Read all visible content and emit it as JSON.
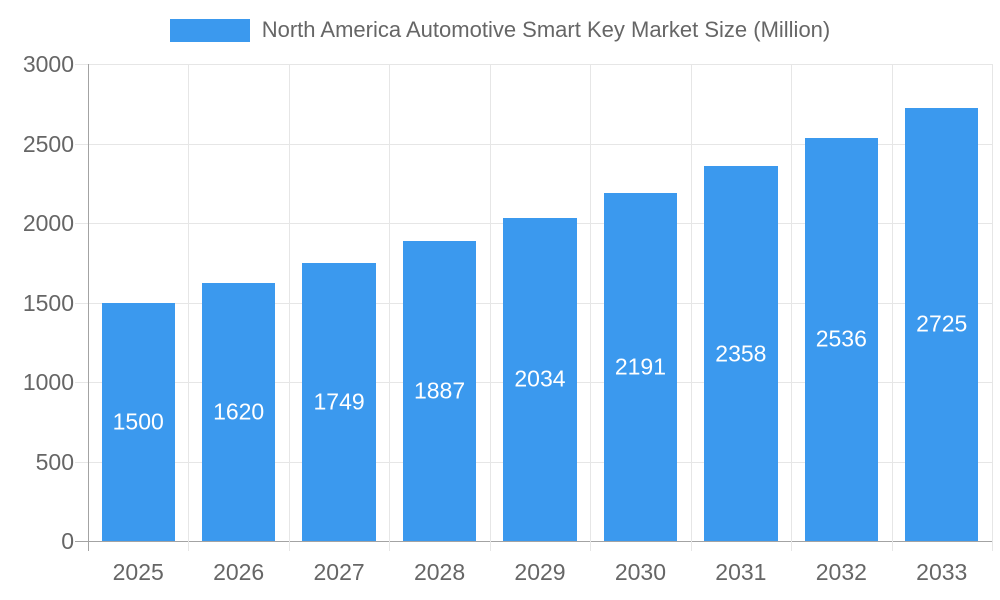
{
  "chart_data": {
    "type": "bar",
    "title": "North America Automotive Smart Key Market Size (Million)",
    "categories": [
      "2025",
      "2026",
      "2027",
      "2028",
      "2029",
      "2030",
      "2031",
      "2032",
      "2033"
    ],
    "values": [
      1500,
      1620,
      1749,
      1887,
      2034,
      2191,
      2358,
      2536,
      2725
    ],
    "xlabel": "",
    "ylabel": "",
    "ylim": [
      0,
      3000
    ],
    "yticks": [
      0,
      500,
      1000,
      1500,
      2000,
      2500,
      3000
    ],
    "grid": true,
    "legend_position": "top",
    "colors": {
      "bar": "#3b99ee",
      "bar_value_label": "#ffffff",
      "axis_text": "#666666",
      "grid_line": "#e6e6e6",
      "axis_line": "#a3a3a3",
      "background": "#ffffff"
    }
  }
}
